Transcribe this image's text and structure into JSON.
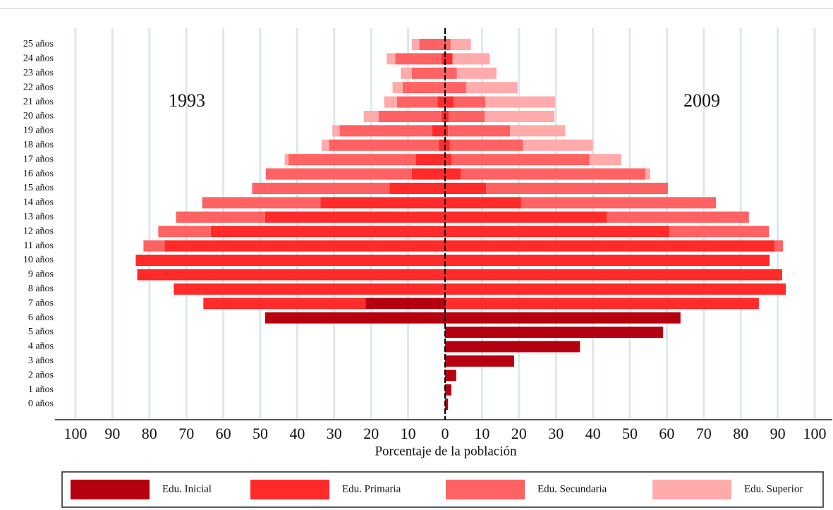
{
  "chart_data": {
    "type": "pyramid",
    "xlabel": "Porcentaje de la población",
    "categories": [
      "0 años",
      "1 años",
      "2 años",
      "3 años",
      "4 años",
      "5 años",
      "6 años",
      "7 años",
      "8 años",
      "9 años",
      "10 años",
      "11 años",
      "12 años",
      "13 años",
      "14 años",
      "15 años",
      "16 años",
      "17 años",
      "18 años",
      "19 años",
      "20 años",
      "21 años",
      "22 años",
      "23 años",
      "24 años",
      "25 años"
    ],
    "series": [
      {
        "name": "Edu. Inicial",
        "color": "#b5000f"
      },
      {
        "name": "Edu. Primaria",
        "color": "#ff2a2a"
      },
      {
        "name": "Edu. Secundaria",
        "color": "#ff6262"
      },
      {
        "name": "Edu. Superior",
        "color": "#ffabab"
      }
    ],
    "sides": [
      {
        "label": "1993",
        "direction": "left",
        "values": [
          [
            0,
            0,
            0,
            0,
            0,
            0,
            48.7,
            21.5,
            0,
            0,
            0,
            0,
            0,
            0,
            0,
            0,
            0,
            0,
            0,
            0,
            0,
            0,
            0,
            0,
            0,
            0
          ],
          [
            0,
            0,
            0,
            0,
            0,
            0,
            0,
            43.9,
            73.4,
            83.3,
            83.7,
            75.9,
            63.4,
            48.7,
            33.7,
            15,
            9,
            7.9,
            1.7,
            3.5,
            1,
            2,
            0,
            0,
            1,
            0
          ],
          [
            0,
            0,
            0,
            0,
            0,
            0,
            0,
            0,
            0,
            0,
            0,
            5.7,
            14.2,
            24.1,
            32,
            37.2,
            39.5,
            34.5,
            29.7,
            25,
            17,
            11,
            11.5,
            9,
            12.5,
            7
          ],
          [
            0,
            0,
            0,
            0,
            0,
            0,
            0,
            0,
            0,
            0,
            0,
            0,
            0,
            0,
            0,
            0,
            0,
            1,
            2,
            2,
            4,
            3.5,
            2.7,
            3,
            2.3,
            2
          ]
        ]
      },
      {
        "label": "2009",
        "direction": "right",
        "values": [
          [
            0.8,
            1.7,
            3,
            18.7,
            36.5,
            59,
            63.7,
            0,
            0,
            0,
            0,
            0,
            0,
            0,
            0,
            0,
            0,
            0,
            0,
            0,
            0,
            0,
            0,
            0,
            0,
            0
          ],
          [
            0,
            0,
            0,
            0,
            0,
            0,
            0,
            84.9,
            92.2,
            91.2,
            87.8,
            89.1,
            60.7,
            43.7,
            20.6,
            11.1,
            4.2,
            1.7,
            1.3,
            0.8,
            1,
            2.3,
            0,
            0,
            2,
            0
          ],
          [
            0,
            0,
            0,
            0,
            0,
            0,
            0,
            0,
            0,
            0,
            0,
            2.3,
            26.9,
            38.5,
            52.7,
            49.2,
            50,
            37.4,
            19.8,
            16.8,
            9.7,
            8.6,
            5.7,
            3.2,
            0,
            1.5
          ],
          [
            0,
            0,
            0,
            0,
            0,
            0,
            0,
            0,
            0,
            0,
            0,
            0,
            0,
            0,
            0,
            0,
            1.3,
            8.6,
            18.9,
            14.9,
            18.9,
            18.9,
            13.9,
            10.7,
            10.1,
            5.5
          ]
        ]
      }
    ],
    "xlim": [
      -100,
      100
    ],
    "xticks": [
      {
        "value": -100,
        "label": "100"
      },
      {
        "value": -90,
        "label": "90"
      },
      {
        "value": -80,
        "label": "80"
      },
      {
        "value": -70,
        "label": "70"
      },
      {
        "value": -60,
        "label": "60"
      },
      {
        "value": -50,
        "label": "50"
      },
      {
        "value": -40,
        "label": "40"
      },
      {
        "value": -30,
        "label": "30"
      },
      {
        "value": -20,
        "label": "20"
      },
      {
        "value": -10,
        "label": "10"
      },
      0,
      10,
      20,
      30,
      40,
      50,
      60,
      70,
      80,
      90,
      100
    ],
    "grid": true
  }
}
